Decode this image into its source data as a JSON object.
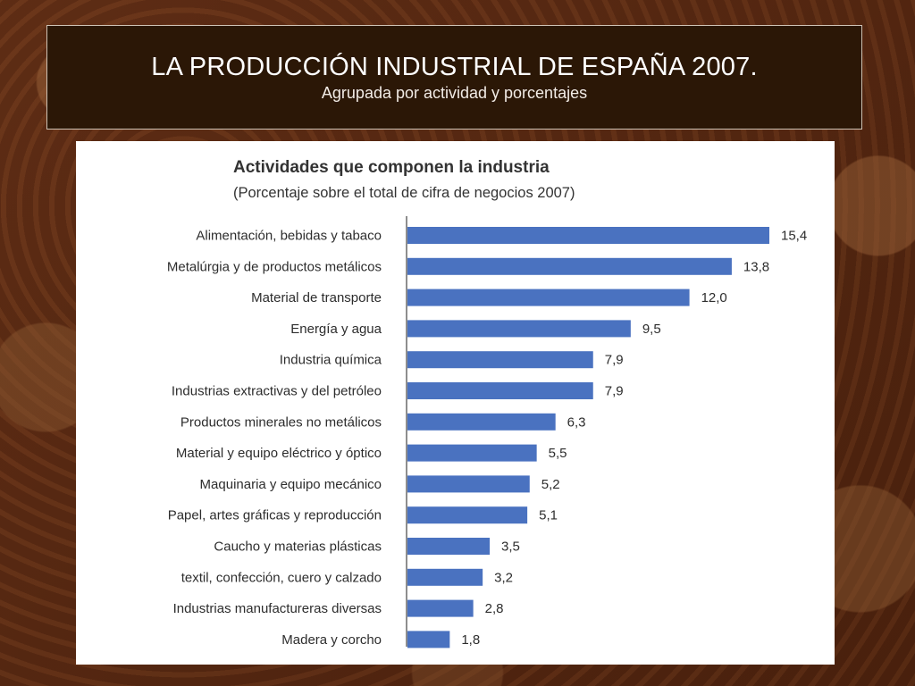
{
  "slide": {
    "title": "LA PRODUCCIÓN INDUSTRIAL DE ESPAÑA  2007.",
    "subtitle": "Agrupada por actividad y porcentajes"
  },
  "colors": {
    "bar": "#4a72c0",
    "background": "#5a2a12",
    "title_box": "#2b1706"
  },
  "chart_data": {
    "type": "bar",
    "orientation": "horizontal",
    "title": "Actividades que componen la industria",
    "subtitle": "(Porcentaje sobre el total de cifra de negocios 2007)",
    "xlabel": "",
    "ylabel": "",
    "xlim": [
      0,
      15.4
    ],
    "grid": false,
    "categories": [
      "Alimentación, bebidas y tabaco",
      "Metalúrgia y de productos metálicos",
      "Material de transporte",
      "Energía y agua",
      "Industria química",
      "Industrias extractivas y del petróleo",
      "Productos minerales no metálicos",
      "Material y equipo eléctrico y óptico",
      "Maquinaria y equipo mecánico",
      "Papel, artes gráficas y reproducción",
      "Caucho y materias plásticas",
      "textil, confección, cuero y calzado",
      "Industrias manufactureras diversas",
      "Madera y corcho"
    ],
    "values": [
      15.4,
      13.8,
      12.0,
      9.5,
      7.9,
      7.9,
      6.3,
      5.5,
      5.2,
      5.1,
      3.5,
      3.2,
      2.8,
      1.8
    ],
    "value_labels": [
      "15,4",
      "13,8",
      "12,0",
      "9,5",
      "7,9",
      "7,9",
      "6,3",
      "5,5",
      "5,2",
      "5,1",
      "3,5",
      "3,2",
      "2,8",
      "1,8"
    ]
  }
}
